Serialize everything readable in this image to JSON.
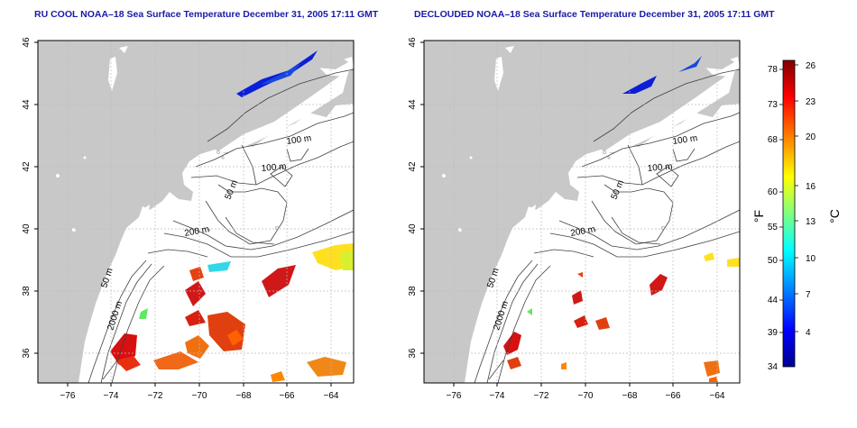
{
  "titles": {
    "left": "RU COOL NOAA–18 Sea Surface Temperature December 31, 2005 17:11 GMT",
    "right": "DECLOUDED NOAA–18 Sea Surface Temperature December 31, 2005 17:11 GMT"
  },
  "axes": {
    "lon_ticks": [
      "−76",
      "−74",
      "−72",
      "−70",
      "−68",
      "−66",
      "−64"
    ],
    "lat_ticks": [
      "36",
      "38",
      "40",
      "42",
      "44",
      "46"
    ]
  },
  "contour_labels": {
    "c100a": "100 m",
    "c100b": "100 m",
    "c50a": "50 m",
    "c200": "200 m",
    "c50b": "50 m",
    "c2000": "2000 m"
  },
  "colorbar": {
    "f_ticks": [
      "78",
      "73",
      "68",
      "60",
      "55",
      "50",
      "44",
      "39",
      "34"
    ],
    "c_ticks": [
      "26",
      "23",
      "20",
      "16",
      "13",
      "10",
      "7",
      "4"
    ],
    "f_label": "°F",
    "c_label": "°C",
    "colors": [
      "#00008f",
      "#0000ff",
      "#0080ff",
      "#00ffff",
      "#80ff80",
      "#ffff00",
      "#ff8000",
      "#ff0000",
      "#800000"
    ]
  },
  "colors": {
    "land": "#c8c8c8",
    "title": "#1a1aa8",
    "contour": "#404040"
  }
}
